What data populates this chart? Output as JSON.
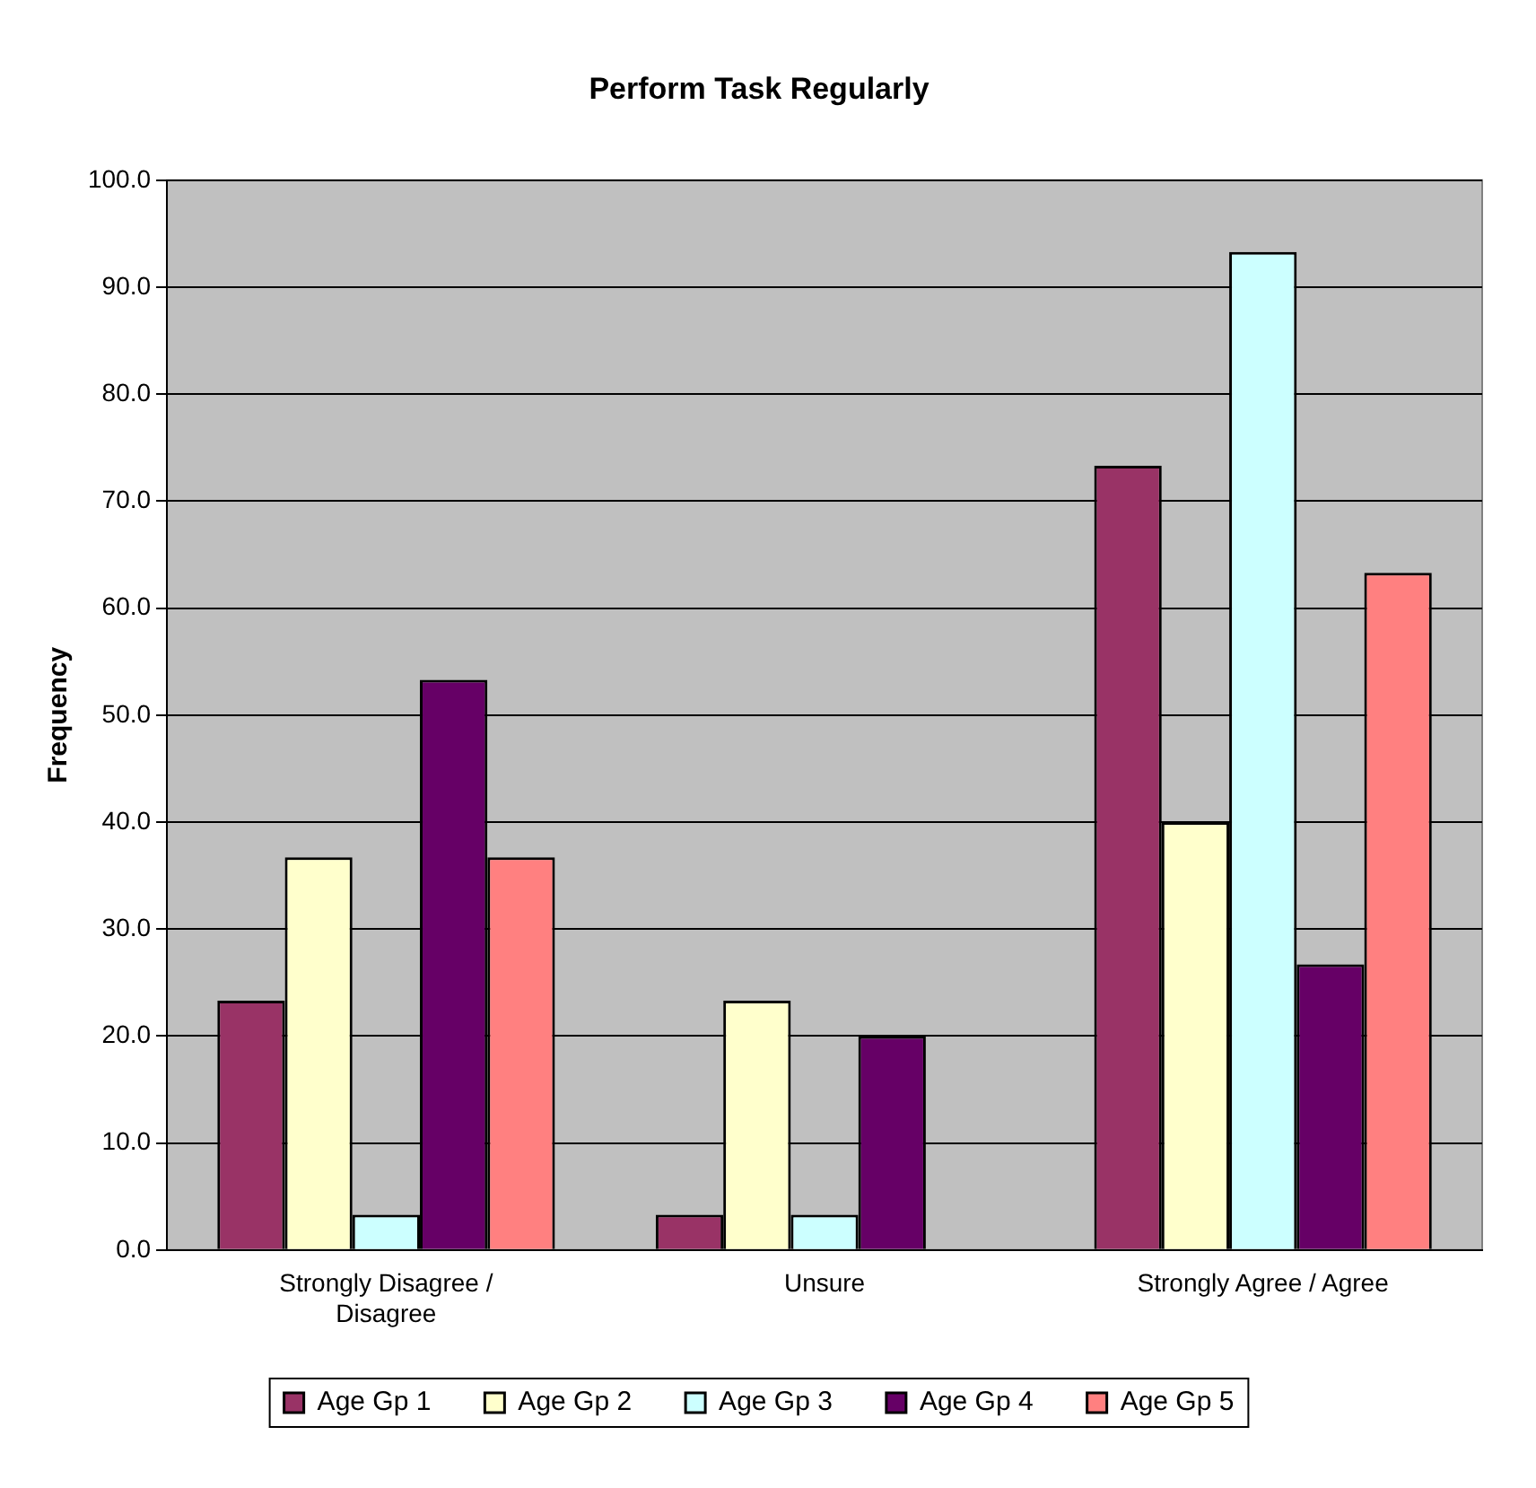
{
  "chart_data": {
    "type": "bar",
    "title": "Perform Task Regularly",
    "ylabel": "Frequency",
    "categories": [
      "Strongly Disagree / Disagree",
      "Unsure",
      "Strongly Agree / Agree"
    ],
    "series": [
      {
        "name": "Age Gp 1",
        "color": "#993366",
        "values": [
          23.3,
          3.3,
          73.3
        ]
      },
      {
        "name": "Age Gp 2",
        "color": "#ffffcc",
        "values": [
          36.7,
          23.3,
          40.0
        ]
      },
      {
        "name": "Age Gp 3",
        "color": "#ccffff",
        "values": [
          3.3,
          3.3,
          93.3
        ]
      },
      {
        "name": "Age Gp 4",
        "color": "#660066",
        "values": [
          53.3,
          20.0,
          26.7
        ]
      },
      {
        "name": "Age Gp 5",
        "color": "#ff8080",
        "values": [
          36.7,
          0,
          63.3
        ]
      }
    ],
    "ylim": [
      0,
      100
    ],
    "yticks": [
      {
        "value": 0,
        "label": "0.0"
      },
      {
        "value": 10,
        "label": "10.0"
      },
      {
        "value": 20,
        "label": "20.0"
      },
      {
        "value": 30,
        "label": "30.0"
      },
      {
        "value": 40,
        "label": "40.0"
      },
      {
        "value": 50,
        "label": "50.0"
      },
      {
        "value": 60,
        "label": "60.0"
      },
      {
        "value": 70,
        "label": "70.0"
      },
      {
        "value": 80,
        "label": "80.0"
      },
      {
        "value": 90,
        "label": "90.0"
      },
      {
        "value": 100,
        "label": "100.0"
      }
    ],
    "grid": "y",
    "legend": "bottom"
  }
}
